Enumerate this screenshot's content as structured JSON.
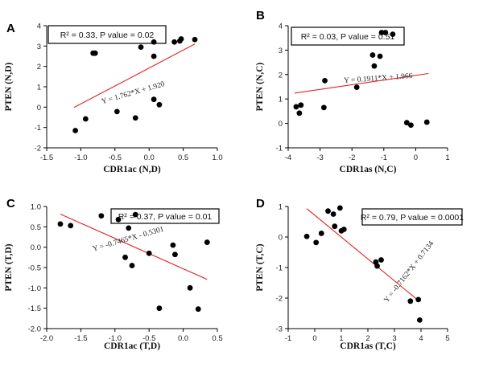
{
  "chart_data": [
    {
      "type": "scatter",
      "panel_label": "A",
      "xlabel": "CDR1ac (N,D)",
      "ylabel": "PTEN (N,D)",
      "xlim": [
        -1.5,
        1.0
      ],
      "ylim": [
        -2,
        4
      ],
      "xticks": [
        "-1.5",
        "-1.0",
        "-0.5",
        "0.0",
        "0.5",
        "1.0"
      ],
      "yticks": [
        "-2",
        "-1",
        "0",
        "1",
        "2",
        "3",
        "4"
      ],
      "stats_text": "R² = 0.33, P value = 0.02",
      "equation": "Y = 1.762*X + 1.920",
      "fit": {
        "slope": 1.762,
        "intercept": 1.92,
        "x_range": [
          -1.1,
          0.67
        ]
      },
      "points": [
        {
          "x": -1.08,
          "y": -1.15
        },
        {
          "x": -0.93,
          "y": -0.58
        },
        {
          "x": -0.82,
          "y": 2.65
        },
        {
          "x": -0.79,
          "y": 2.65
        },
        {
          "x": -0.47,
          "y": -0.22
        },
        {
          "x": -0.2,
          "y": -0.53
        },
        {
          "x": -0.12,
          "y": 2.95
        },
        {
          "x": 0.07,
          "y": 3.2
        },
        {
          "x": 0.07,
          "y": 2.5
        },
        {
          "x": 0.07,
          "y": 0.38
        },
        {
          "x": 0.15,
          "y": 0.12
        },
        {
          "x": 0.37,
          "y": 3.2
        },
        {
          "x": 0.45,
          "y": 3.25
        },
        {
          "x": 0.47,
          "y": 3.35
        },
        {
          "x": 0.67,
          "y": 3.32
        }
      ]
    },
    {
      "type": "scatter",
      "panel_label": "B",
      "xlabel": "CDR1as (N,C)",
      "ylabel": "PTEN (N,C)",
      "xlim": [
        -4,
        1
      ],
      "ylim": [
        -1,
        4
      ],
      "xticks": [
        "-4",
        "-3",
        "-2",
        "-1",
        "0",
        "1"
      ],
      "yticks": [
        "-1",
        "0",
        "1",
        "2",
        "3",
        "4"
      ],
      "stats_text": "R² = 0.03, P value = 0.51",
      "equation": "Y = 0.1911*X + 1.966",
      "fit": {
        "slope": 0.1911,
        "intercept": 1.966,
        "x_range": [
          -3.8,
          0.4
        ]
      },
      "points": [
        {
          "x": -3.75,
          "y": 0.68
        },
        {
          "x": -3.65,
          "y": 0.42
        },
        {
          "x": -3.6,
          "y": 0.75
        },
        {
          "x": -2.88,
          "y": 0.65
        },
        {
          "x": -2.85,
          "y": 1.75
        },
        {
          "x": -1.85,
          "y": 1.48
        },
        {
          "x": -1.35,
          "y": 2.8
        },
        {
          "x": -1.3,
          "y": 2.35
        },
        {
          "x": -1.12,
          "y": 2.75
        },
        {
          "x": -1.07,
          "y": 3.72
        },
        {
          "x": -0.95,
          "y": 3.72
        },
        {
          "x": -0.72,
          "y": 3.65
        },
        {
          "x": -0.28,
          "y": 0.03
        },
        {
          "x": -0.15,
          "y": -0.07
        },
        {
          "x": 0.35,
          "y": 0.05
        }
      ]
    },
    {
      "type": "scatter",
      "panel_label": "C",
      "xlabel": "CDR1ac (T,D)",
      "ylabel": "PTEN (T,D)",
      "xlim": [
        -2.0,
        0.5
      ],
      "ylim": [
        -2.0,
        1.0
      ],
      "xticks": [
        "-2.0",
        "-1.5",
        "-1.0",
        "-0.5",
        "0.0",
        "0.5"
      ],
      "yticks": [
        "-2.0",
        "-1.5",
        "-1.0",
        "-0.5",
        "0.0",
        "0.5",
        "1.0"
      ],
      "stats_text": "R² = 0.37, P value = 0.01",
      "equation": "Y = -0.7465*X - 0.5301",
      "fit": {
        "slope": -0.7465,
        "intercept": -0.5301,
        "x_range": [
          -1.8,
          0.35
        ]
      },
      "points": [
        {
          "x": -1.8,
          "y": 0.57
        },
        {
          "x": -1.65,
          "y": 0.53
        },
        {
          "x": -1.2,
          "y": 0.77
        },
        {
          "x": -0.95,
          "y": 0.68
        },
        {
          "x": -0.85,
          "y": -0.25
        },
        {
          "x": -0.8,
          "y": 0.47
        },
        {
          "x": -0.75,
          "y": -0.45
        },
        {
          "x": -0.7,
          "y": 0.8
        },
        {
          "x": -0.5,
          "y": -0.15
        },
        {
          "x": -0.35,
          "y": -1.5
        },
        {
          "x": -0.15,
          "y": 0.05
        },
        {
          "x": -0.12,
          "y": -0.18
        },
        {
          "x": 0.1,
          "y": -1.0
        },
        {
          "x": 0.22,
          "y": -1.52
        },
        {
          "x": 0.35,
          "y": 0.12
        }
      ]
    },
    {
      "type": "scatter",
      "panel_label": "D",
      "xlabel": "CDR1as (T,C)",
      "ylabel": "PTEN (T,C)",
      "xlim": [
        -1,
        5
      ],
      "ylim": [
        -3,
        1
      ],
      "xticks": [
        "-1",
        "0",
        "1",
        "2",
        "3",
        "4",
        "5"
      ],
      "yticks": [
        "-3",
        "-2",
        "-1",
        "0",
        "1"
      ],
      "stats_text": "R² = 0.79, P value = 0.0001",
      "equation": "Y = -0.7162*X + 0.7134",
      "fit": {
        "slope": -0.7162,
        "intercept": 0.7134,
        "x_range": [
          -0.3,
          3.95
        ]
      },
      "points": [
        {
          "x": -0.3,
          "y": 0.02
        },
        {
          "x": 0.05,
          "y": -0.18
        },
        {
          "x": 0.25,
          "y": 0.12
        },
        {
          "x": 0.5,
          "y": 0.85
        },
        {
          "x": 0.7,
          "y": 0.75
        },
        {
          "x": 0.75,
          "y": 0.35
        },
        {
          "x": 0.95,
          "y": 0.95
        },
        {
          "x": 1.0,
          "y": 0.2
        },
        {
          "x": 1.1,
          "y": 0.25
        },
        {
          "x": 2.3,
          "y": -0.82
        },
        {
          "x": 2.35,
          "y": -0.95
        },
        {
          "x": 2.5,
          "y": -0.75
        },
        {
          "x": 3.6,
          "y": -2.1
        },
        {
          "x": 3.9,
          "y": -2.05
        },
        {
          "x": 3.95,
          "y": -2.72
        }
      ]
    }
  ]
}
